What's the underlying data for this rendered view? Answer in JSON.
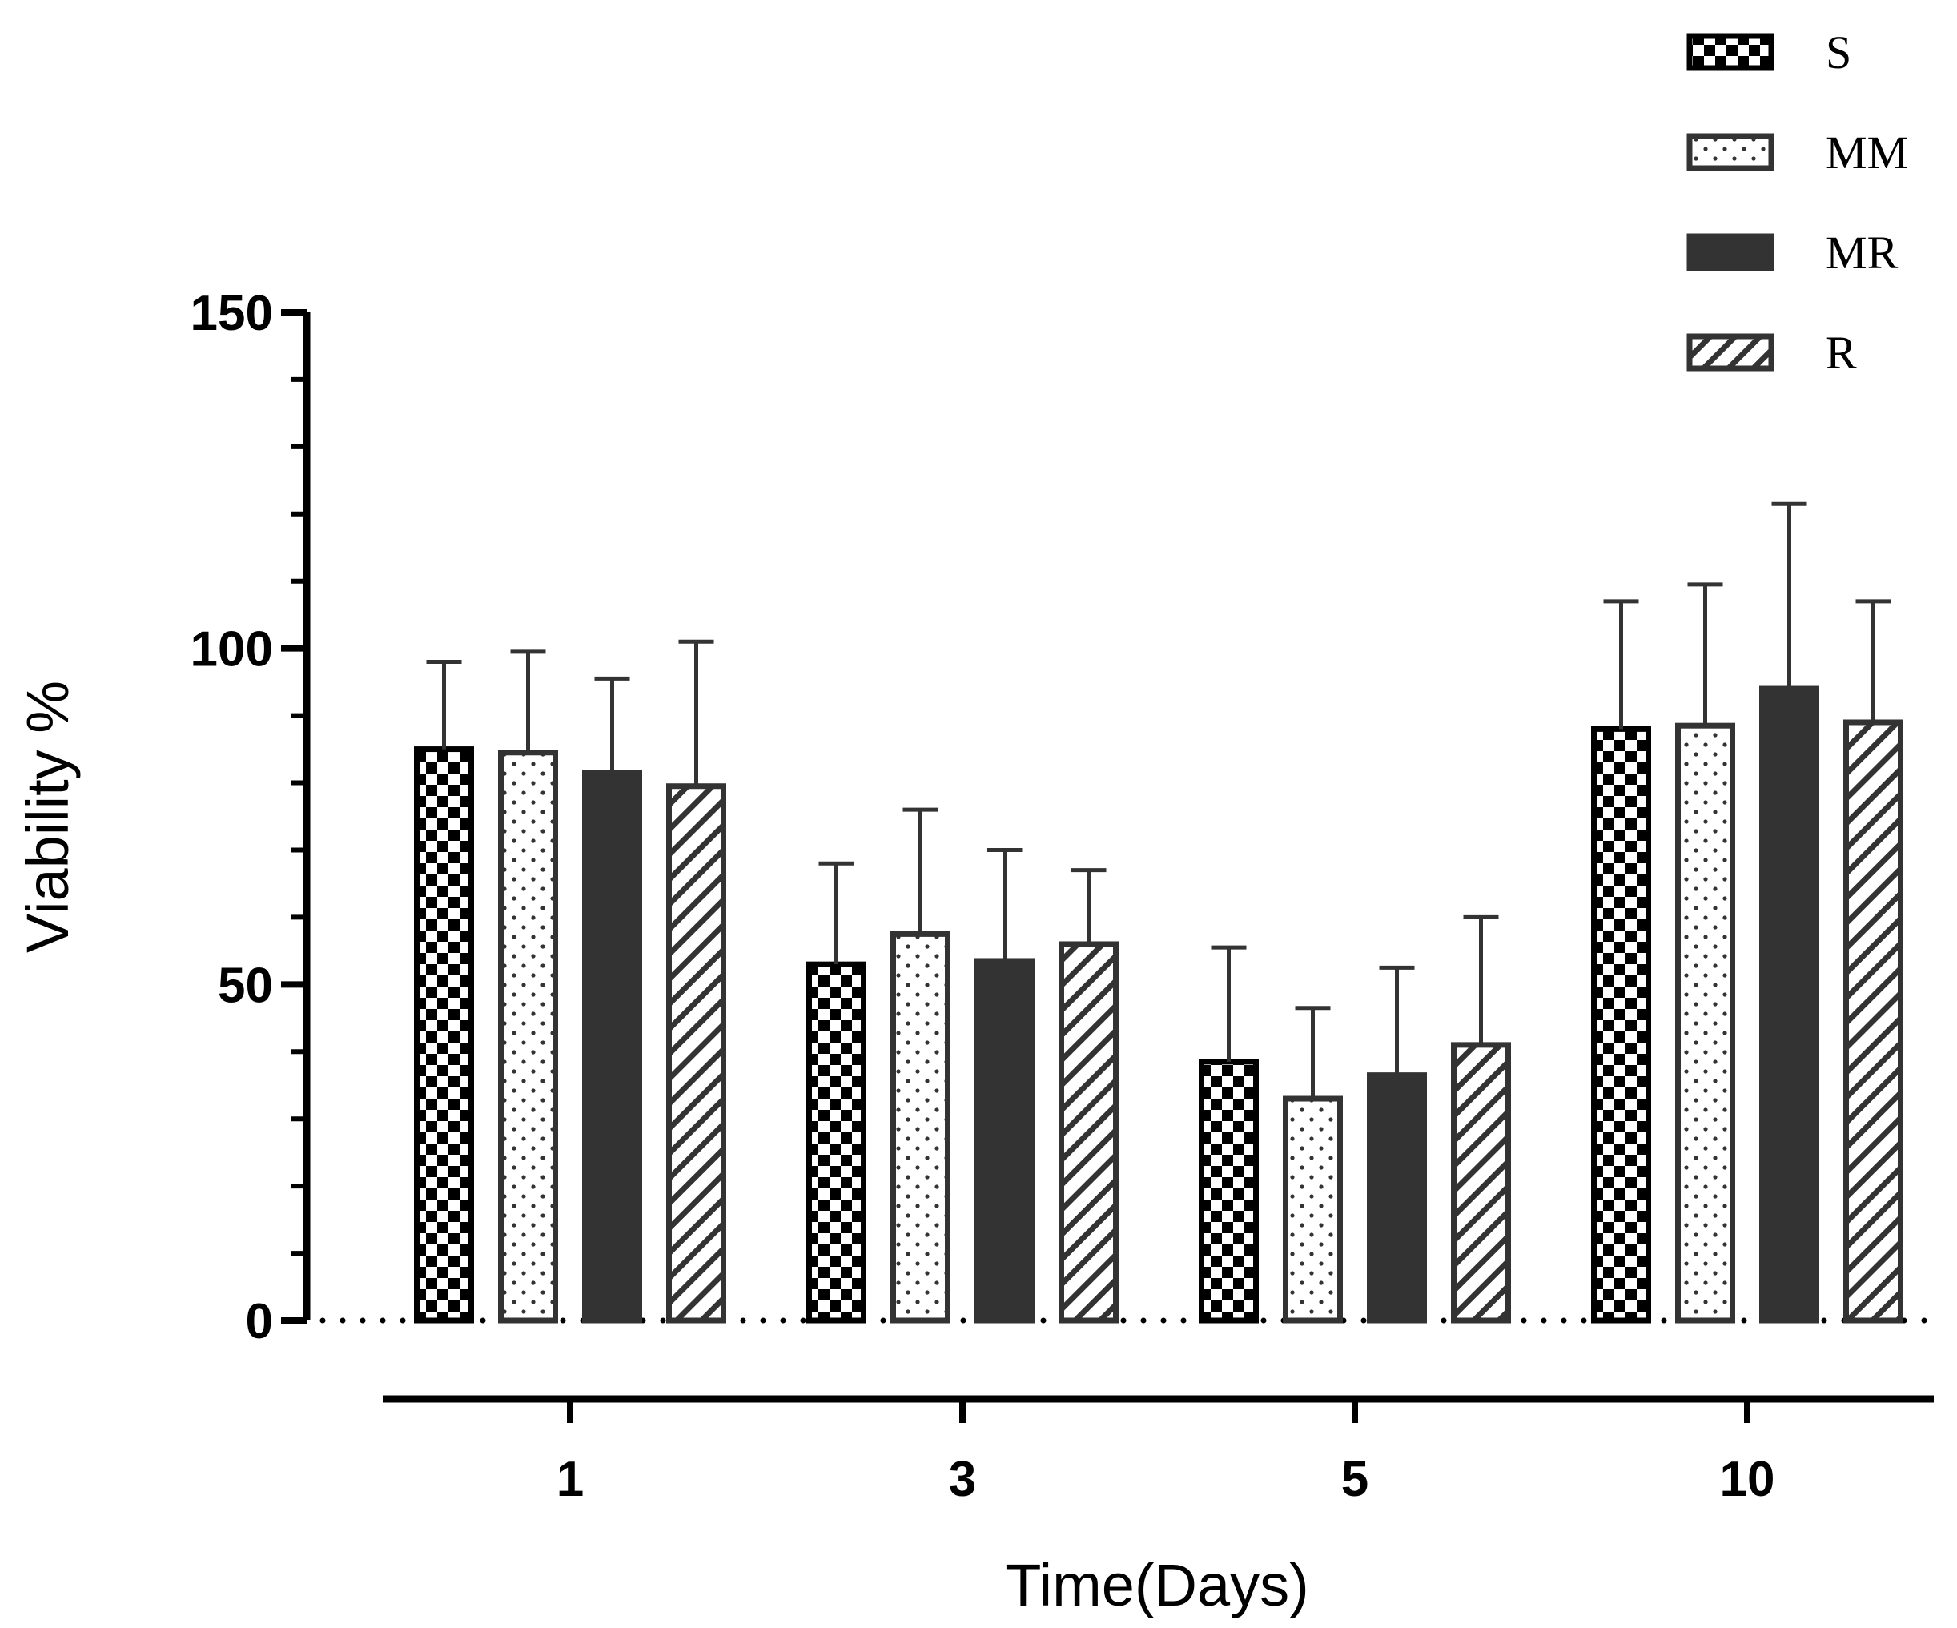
{
  "chart_data": {
    "type": "bar",
    "title": "",
    "xlabel": "Time(Days)",
    "ylabel": "Viability %",
    "ylim": [
      0,
      150
    ],
    "yticks": [
      "0",
      "50",
      "100",
      "150"
    ],
    "categories": [
      "1",
      "3",
      "5",
      "10"
    ],
    "series": [
      {
        "name": "S",
        "pattern": "checker",
        "values": [
          85,
          53,
          38.5,
          88
        ],
        "errors": [
          13,
          15,
          17,
          19
        ]
      },
      {
        "name": "MM",
        "pattern": "dots",
        "values": [
          84.5,
          57.5,
          33,
          88.5
        ],
        "errors": [
          15,
          18.5,
          13.5,
          21
        ]
      },
      {
        "name": "MR",
        "pattern": "solid",
        "values": [
          81.5,
          53.5,
          36.5,
          94
        ],
        "errors": [
          14,
          16.5,
          16,
          27.5
        ]
      },
      {
        "name": "R",
        "pattern": "hatch",
        "values": [
          79.5,
          56,
          41,
          89
        ],
        "errors": [
          21.5,
          11,
          19,
          18
        ]
      }
    ],
    "baseline_style": "dotted",
    "legend_position": "top-right",
    "colors": {
      "bar_fill_dark": "#333333",
      "outline": "#333333",
      "checker": "#000000",
      "background": "#ffffff"
    }
  }
}
